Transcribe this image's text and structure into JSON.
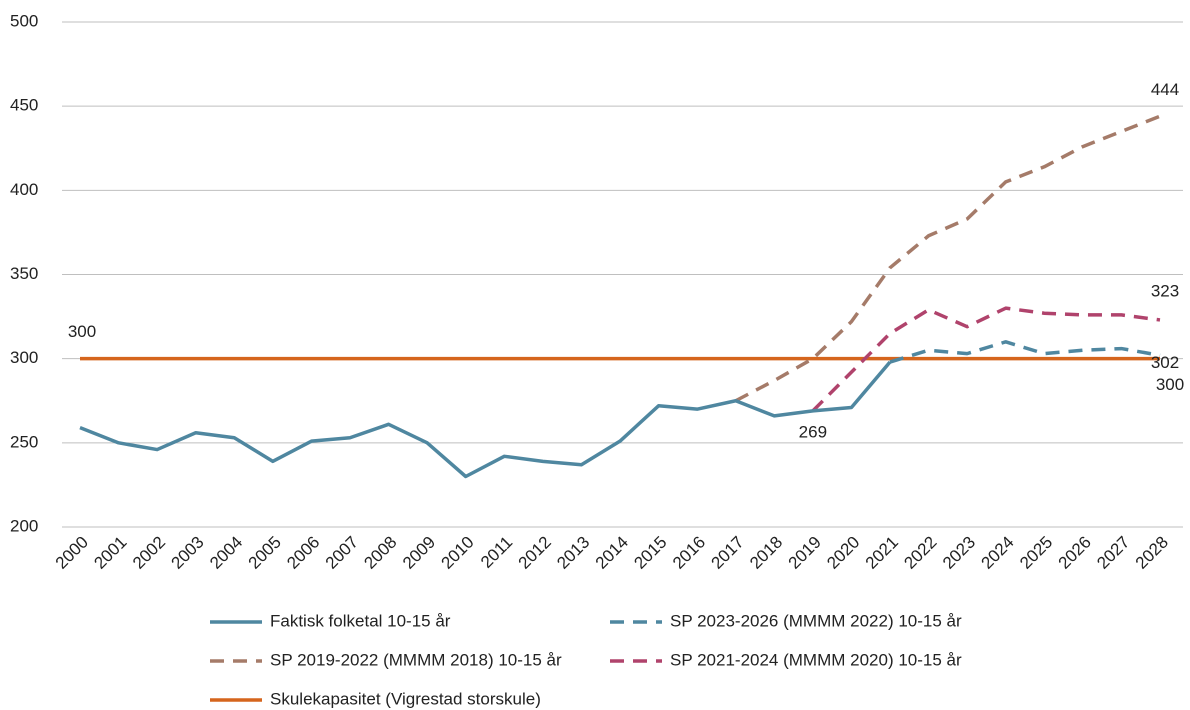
{
  "chart_data": {
    "type": "line",
    "categories": [
      "2000",
      "2001",
      "2002",
      "2003",
      "2004",
      "2005",
      "2006",
      "2007",
      "2008",
      "2009",
      "2010",
      "2011",
      "2012",
      "2013",
      "2014",
      "2015",
      "2016",
      "2017",
      "2018",
      "2019",
      "2020",
      "2021",
      "2022",
      "2023",
      "2024",
      "2025",
      "2026",
      "2027",
      "2028"
    ],
    "ylim": [
      200,
      500
    ],
    "yticks": [
      200,
      250,
      300,
      350,
      400,
      450,
      500
    ],
    "grid": true,
    "legend": "bottom",
    "series": [
      {
        "name": "Faktisk folketal 10-15 år",
        "color": "#4f87a0",
        "dash": false,
        "values": [
          259,
          250,
          246,
          256,
          253,
          239,
          251,
          253,
          261,
          250,
          230,
          242,
          239,
          237,
          251,
          272,
          270,
          275,
          266,
          269,
          271,
          298,
          null,
          null,
          null,
          null,
          null,
          null,
          null
        ]
      },
      {
        "name": "SP 2023-2026 (MMMM 2022) 10-15 år",
        "color": "#4f87a0",
        "dash": true,
        "values": [
          null,
          null,
          null,
          null,
          null,
          null,
          null,
          null,
          null,
          null,
          null,
          null,
          null,
          null,
          null,
          null,
          null,
          null,
          null,
          null,
          null,
          298,
          305,
          303,
          310,
          303,
          305,
          306,
          302
        ]
      },
      {
        "name": "SP 2019-2022 (MMMM 2018) 10-15 år",
        "color": "#a57b69",
        "dash": true,
        "values": [
          null,
          null,
          null,
          null,
          null,
          null,
          null,
          null,
          null,
          null,
          null,
          null,
          null,
          null,
          null,
          null,
          null,
          275,
          287,
          300,
          322,
          354,
          373,
          383,
          405,
          414,
          426,
          435,
          444
        ]
      },
      {
        "name": "SP 2021-2024 (MMMM 2020) 10-15 år",
        "color": "#b0436c",
        "dash": true,
        "values": [
          null,
          null,
          null,
          null,
          null,
          null,
          null,
          null,
          null,
          null,
          null,
          null,
          null,
          null,
          null,
          null,
          null,
          null,
          null,
          269,
          292,
          315,
          329,
          319,
          330,
          327,
          326,
          326,
          323
        ]
      },
      {
        "name": "Skulekapasitet (Vigrestad storskule)",
        "color": "#d5651d",
        "dash": false,
        "values": [
          300,
          300,
          300,
          300,
          300,
          300,
          300,
          300,
          300,
          300,
          300,
          300,
          300,
          300,
          300,
          300,
          300,
          300,
          300,
          300,
          300,
          300,
          300,
          300,
          300,
          300,
          300,
          300,
          300
        ]
      }
    ]
  }
}
